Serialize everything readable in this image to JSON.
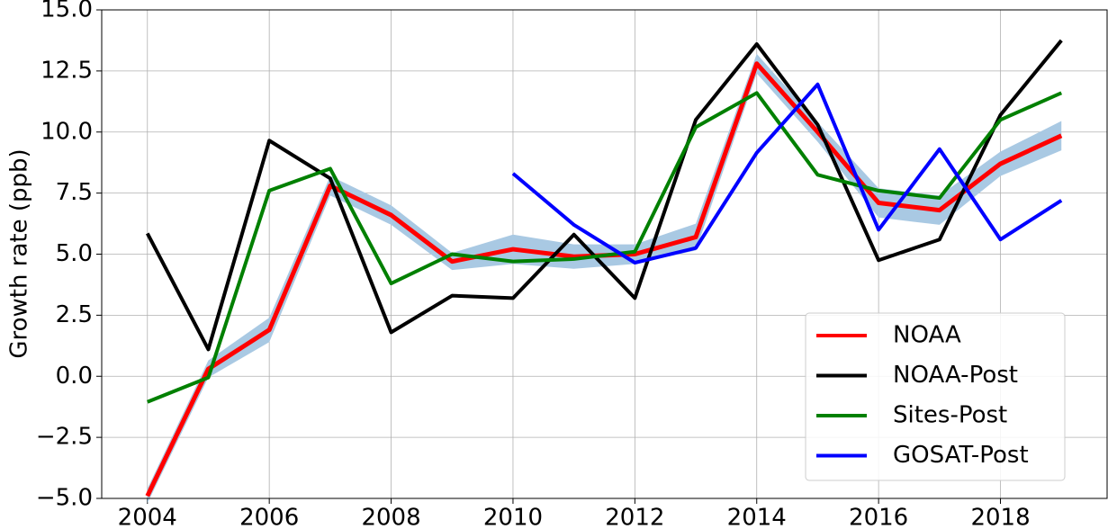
{
  "chart_data": {
    "type": "line",
    "y_label": "Growth rate (ppb)",
    "x": [
      2004,
      2005,
      2006,
      2007,
      2008,
      2009,
      2010,
      2011,
      2012,
      2013,
      2014,
      2015,
      2016,
      2017,
      2018,
      2019
    ],
    "series": [
      {
        "name": "NOAA",
        "color": "#ff0000",
        "values": [
          -4.9,
          0.3,
          1.9,
          7.8,
          6.6,
          4.7,
          5.2,
          4.9,
          5.0,
          5.7,
          12.8,
          10.0,
          7.1,
          6.8,
          8.7,
          9.85
        ],
        "error": [
          0.3,
          0.35,
          0.5,
          0.4,
          0.4,
          0.35,
          0.6,
          0.5,
          0.4,
          0.55,
          0.4,
          0.4,
          0.6,
          0.6,
          0.5,
          0.6
        ],
        "error_color": "#a9c9e3"
      },
      {
        "name": "NOAA-Post",
        "color": "#000000",
        "values": [
          5.85,
          1.1,
          9.65,
          8.1,
          1.8,
          3.3,
          3.2,
          5.8,
          3.2,
          10.5,
          13.6,
          10.3,
          4.75,
          5.6,
          10.7,
          13.75
        ]
      },
      {
        "name": "Sites-Post",
        "color": "#008000",
        "values": [
          -1.05,
          -0.05,
          7.6,
          8.5,
          3.8,
          5.0,
          4.7,
          4.8,
          5.1,
          10.2,
          11.6,
          8.25,
          7.6,
          7.3,
          10.5,
          11.6
        ]
      },
      {
        "name": "GOSAT-Post",
        "color": "#0000ff",
        "values": [
          null,
          null,
          null,
          null,
          null,
          null,
          8.3,
          6.2,
          4.65,
          5.25,
          9.15,
          11.95,
          6.0,
          9.3,
          5.6,
          7.2
        ]
      }
    ],
    "xlim": [
      2003.25,
      2019.75
    ],
    "xticks": [
      2004,
      2006,
      2008,
      2010,
      2012,
      2014,
      2016,
      2018
    ],
    "ylim": [
      -5,
      15
    ],
    "yticks": [
      {
        "value": -5,
        "label": "−5.0"
      },
      {
        "value": -2.5,
        "label": "−2.5"
      },
      {
        "value": 0,
        "label": "0.0"
      },
      {
        "value": 2.5,
        "label": "2.5"
      },
      {
        "value": 5,
        "label": "5.0"
      },
      {
        "value": 7.5,
        "label": "7.5"
      },
      {
        "value": 10,
        "label": "10.0"
      },
      {
        "value": 12.5,
        "label": "12.5"
      },
      {
        "value": 15,
        "label": "15.0"
      }
    ],
    "grid": true,
    "legend": "lower right"
  }
}
